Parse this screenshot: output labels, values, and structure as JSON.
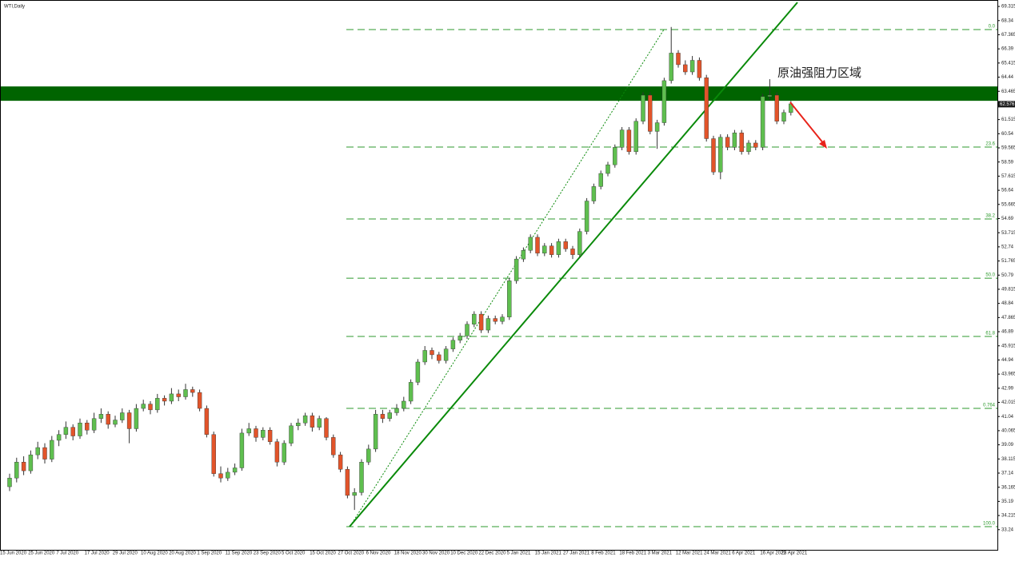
{
  "chart_data": {
    "type": "candlestick",
    "title": "WTI,Daily",
    "annotation": "原油强阻力区域",
    "up_color": "#5fbf4f",
    "down_color": "#e2542a",
    "wick_color": "#333333",
    "zone": [
      62.81,
      63.8
    ],
    "zone_color": "#006400",
    "level_color": "#2e9a2e",
    "levels": [
      {
        "label": "0.0",
        "value": 67.72
      },
      {
        "label": "23.6",
        "value": 59.62
      },
      {
        "label": "38.2",
        "value": 54.66
      },
      {
        "label": "50.0",
        "value": 50.58
      },
      {
        "label": "61.8",
        "value": 46.56
      },
      {
        "label": "0.764",
        "value": 41.6
      },
      {
        "label": "100.0",
        "value": 33.45
      }
    ],
    "last_price": 62.576,
    "ylim": [
      31.74,
      69.76
    ],
    "yticks": [
      69.315,
      68.34,
      67.365,
      66.39,
      65.415,
      64.44,
      63.465,
      62.49,
      61.515,
      60.54,
      59.565,
      58.59,
      57.615,
      56.64,
      55.665,
      54.69,
      53.715,
      52.74,
      51.765,
      50.79,
      49.815,
      48.84,
      47.865,
      46.89,
      45.915,
      44.94,
      43.965,
      42.99,
      42.015,
      41.04,
      40.065,
      39.09,
      38.115,
      37.14,
      36.165,
      35.19,
      34.215,
      33.24
    ],
    "categories": [
      "15 Jun 2020",
      null,
      null,
      null,
      "25 Jun 2020",
      null,
      null,
      null,
      "7 Jul 2020",
      null,
      null,
      null,
      "17 Jul 2020",
      null,
      null,
      null,
      "29 Jul 2020",
      null,
      null,
      null,
      "10 Aug 2020",
      null,
      null,
      null,
      "20 Aug 2020",
      null,
      null,
      null,
      "1 Sep 2020",
      null,
      null,
      null,
      "11 Sep 2020",
      null,
      null,
      null,
      "23 Sep 2020",
      null,
      null,
      null,
      "5 Oct 2020",
      null,
      null,
      null,
      "15 Oct 2020",
      null,
      null,
      null,
      "27 Oct 2020",
      null,
      null,
      null,
      "6 Nov 2020",
      null,
      null,
      null,
      "18 Nov 2020",
      null,
      null,
      null,
      "30 Nov 2020",
      null,
      null,
      null,
      "10 Dec 2020",
      null,
      null,
      null,
      "22 Dec 2020",
      null,
      null,
      null,
      "5 Jan 2021",
      null,
      null,
      null,
      "15 Jan 2021",
      null,
      null,
      null,
      "27 Jan 2021",
      null,
      null,
      null,
      "8 Feb 2021",
      null,
      null,
      null,
      "18 Feb 2021",
      null,
      null,
      null,
      "3 Mar 2021",
      null,
      null,
      null,
      "12 Mar 2021",
      null,
      null,
      null,
      "24 Mar 2021",
      null,
      null,
      null,
      "6 Apr 2021",
      null,
      null,
      null,
      "16 Apr 2021",
      null,
      null,
      "28 Apr 2021"
    ],
    "ohlc": [
      [
        36.2,
        37.1,
        35.9,
        36.8
      ],
      [
        36.8,
        38.2,
        36.5,
        37.9
      ],
      [
        37.9,
        38.3,
        37.0,
        37.3
      ],
      [
        37.3,
        38.7,
        37.1,
        38.4
      ],
      [
        38.4,
        39.3,
        38.1,
        38.9
      ],
      [
        38.9,
        39.2,
        37.8,
        38.1
      ],
      [
        38.1,
        39.7,
        37.9,
        39.4
      ],
      [
        39.4,
        40.1,
        39.0,
        39.8
      ],
      [
        39.8,
        40.7,
        39.5,
        40.3
      ],
      [
        40.3,
        40.5,
        39.4,
        39.7
      ],
      [
        39.7,
        40.9,
        39.5,
        40.6
      ],
      [
        40.6,
        40.8,
        39.8,
        40.1
      ],
      [
        40.1,
        41.3,
        39.9,
        40.9
      ],
      [
        40.9,
        41.6,
        40.6,
        41.2
      ],
      [
        41.2,
        41.4,
        40.2,
        40.5
      ],
      [
        40.5,
        41.1,
        40.3,
        40.8
      ],
      [
        40.8,
        41.6,
        40.6,
        41.3
      ],
      [
        41.3,
        41.5,
        39.2,
        40.2
      ],
      [
        40.2,
        41.9,
        40.0,
        41.6
      ],
      [
        41.6,
        42.2,
        41.4,
        41.9
      ],
      [
        41.9,
        42.1,
        41.2,
        41.5
      ],
      [
        41.5,
        42.6,
        41.3,
        42.3
      ],
      [
        42.3,
        42.5,
        41.8,
        42.1
      ],
      [
        42.1,
        43.0,
        41.9,
        42.6
      ],
      [
        42.6,
        42.9,
        42.1,
        42.4
      ],
      [
        42.4,
        43.3,
        42.2,
        42.9
      ],
      [
        42.9,
        43.1,
        42.4,
        42.7
      ],
      [
        42.7,
        42.9,
        41.4,
        41.6
      ],
      [
        41.6,
        41.8,
        39.6,
        39.8
      ],
      [
        39.8,
        40.0,
        36.9,
        37.1
      ],
      [
        37.1,
        37.6,
        36.5,
        36.8
      ],
      [
        36.8,
        37.5,
        36.6,
        37.2
      ],
      [
        37.2,
        37.8,
        37.0,
        37.5
      ],
      [
        37.5,
        40.2,
        37.3,
        39.9
      ],
      [
        39.9,
        40.6,
        39.7,
        40.2
      ],
      [
        40.2,
        40.4,
        39.3,
        39.6
      ],
      [
        39.6,
        40.3,
        39.4,
        40.1
      ],
      [
        40.1,
        40.3,
        39.1,
        39.3
      ],
      [
        39.3,
        39.5,
        37.6,
        37.9
      ],
      [
        37.9,
        39.4,
        37.7,
        39.2
      ],
      [
        39.2,
        40.6,
        39.0,
        40.4
      ],
      [
        40.4,
        40.9,
        40.1,
        40.6
      ],
      [
        40.6,
        41.3,
        40.4,
        41.1
      ],
      [
        41.1,
        41.3,
        40.0,
        40.3
      ],
      [
        40.3,
        41.1,
        40.1,
        40.9
      ],
      [
        40.9,
        41.0,
        39.4,
        39.6
      ],
      [
        39.6,
        39.8,
        38.2,
        38.4
      ],
      [
        38.4,
        38.6,
        37.2,
        37.4
      ],
      [
        37.4,
        37.6,
        35.4,
        35.6
      ],
      [
        35.6,
        36.1,
        34.6,
        35.8
      ],
      [
        35.8,
        38.1,
        35.6,
        37.9
      ],
      [
        37.9,
        39.1,
        37.7,
        38.8
      ],
      [
        38.8,
        41.5,
        38.6,
        41.2
      ],
      [
        41.2,
        41.5,
        40.6,
        40.9
      ],
      [
        40.9,
        41.5,
        40.7,
        41.3
      ],
      [
        41.3,
        41.9,
        41.1,
        41.6
      ],
      [
        41.6,
        42.4,
        41.4,
        42.1
      ],
      [
        42.1,
        43.6,
        41.9,
        43.4
      ],
      [
        43.4,
        45.0,
        43.2,
        44.8
      ],
      [
        44.8,
        45.9,
        44.6,
        45.6
      ],
      [
        45.6,
        45.8,
        45.0,
        45.3
      ],
      [
        45.3,
        45.5,
        44.7,
        44.9
      ],
      [
        44.9,
        45.9,
        44.7,
        45.7
      ],
      [
        45.7,
        46.5,
        45.5,
        46.3
      ],
      [
        46.3,
        46.8,
        46.1,
        46.6
      ],
      [
        46.6,
        47.6,
        46.4,
        47.4
      ],
      [
        47.4,
        48.3,
        47.2,
        48.1
      ],
      [
        48.1,
        48.3,
        46.8,
        47.0
      ],
      [
        47.0,
        48.0,
        46.8,
        47.8
      ],
      [
        47.8,
        48.0,
        47.4,
        47.6
      ],
      [
        47.6,
        48.1,
        47.4,
        47.9
      ],
      [
        47.9,
        50.6,
        47.7,
        50.4
      ],
      [
        50.4,
        52.1,
        50.2,
        51.9
      ],
      [
        51.9,
        52.7,
        51.7,
        52.5
      ],
      [
        52.5,
        53.6,
        52.3,
        53.4
      ],
      [
        53.4,
        53.6,
        52.1,
        52.3
      ],
      [
        52.3,
        53.0,
        52.1,
        52.8
      ],
      [
        52.8,
        53.0,
        52.0,
        52.2
      ],
      [
        52.2,
        53.3,
        52.0,
        53.1
      ],
      [
        53.1,
        53.3,
        52.4,
        52.6
      ],
      [
        52.6,
        52.8,
        51.9,
        52.2
      ],
      [
        52.2,
        54.0,
        52.0,
        53.8
      ],
      [
        53.8,
        56.1,
        53.6,
        55.9
      ],
      [
        55.9,
        57.1,
        55.7,
        56.9
      ],
      [
        56.9,
        58.0,
        56.7,
        57.8
      ],
      [
        57.8,
        58.6,
        57.6,
        58.4
      ],
      [
        58.4,
        59.8,
        58.2,
        59.6
      ],
      [
        59.6,
        61.0,
        59.4,
        60.8
      ],
      [
        60.8,
        61.0,
        59.1,
        59.3
      ],
      [
        59.3,
        61.6,
        59.1,
        61.4
      ],
      [
        61.4,
        63.4,
        61.2,
        63.2
      ],
      [
        63.2,
        63.4,
        60.5,
        60.7
      ],
      [
        60.7,
        61.5,
        59.5,
        61.3
      ],
      [
        61.3,
        64.4,
        61.1,
        64.2
      ],
      [
        64.2,
        67.9,
        64.0,
        66.1
      ],
      [
        66.1,
        66.3,
        65.1,
        65.3
      ],
      [
        65.3,
        65.6,
        64.6,
        64.8
      ],
      [
        64.8,
        65.9,
        64.6,
        65.6
      ],
      [
        65.6,
        65.8,
        64.2,
        64.4
      ],
      [
        64.4,
        64.6,
        60.0,
        60.2
      ],
      [
        60.2,
        60.4,
        57.7,
        57.9
      ],
      [
        57.9,
        60.5,
        57.4,
        60.3
      ],
      [
        60.3,
        60.5,
        59.4,
        59.6
      ],
      [
        59.6,
        60.8,
        59.4,
        60.6
      ],
      [
        60.6,
        60.8,
        59.1,
        59.3
      ],
      [
        59.3,
        60.1,
        59.1,
        59.9
      ],
      [
        59.9,
        60.1,
        59.4,
        59.6
      ],
      [
        59.6,
        63.3,
        59.4,
        63.1
      ],
      [
        63.1,
        64.3,
        62.9,
        63.2
      ],
      [
        63.2,
        63.4,
        61.2,
        61.4
      ],
      [
        61.4,
        62.2,
        61.2,
        62.0
      ],
      [
        62.0,
        62.8,
        61.8,
        62.6
      ]
    ]
  }
}
